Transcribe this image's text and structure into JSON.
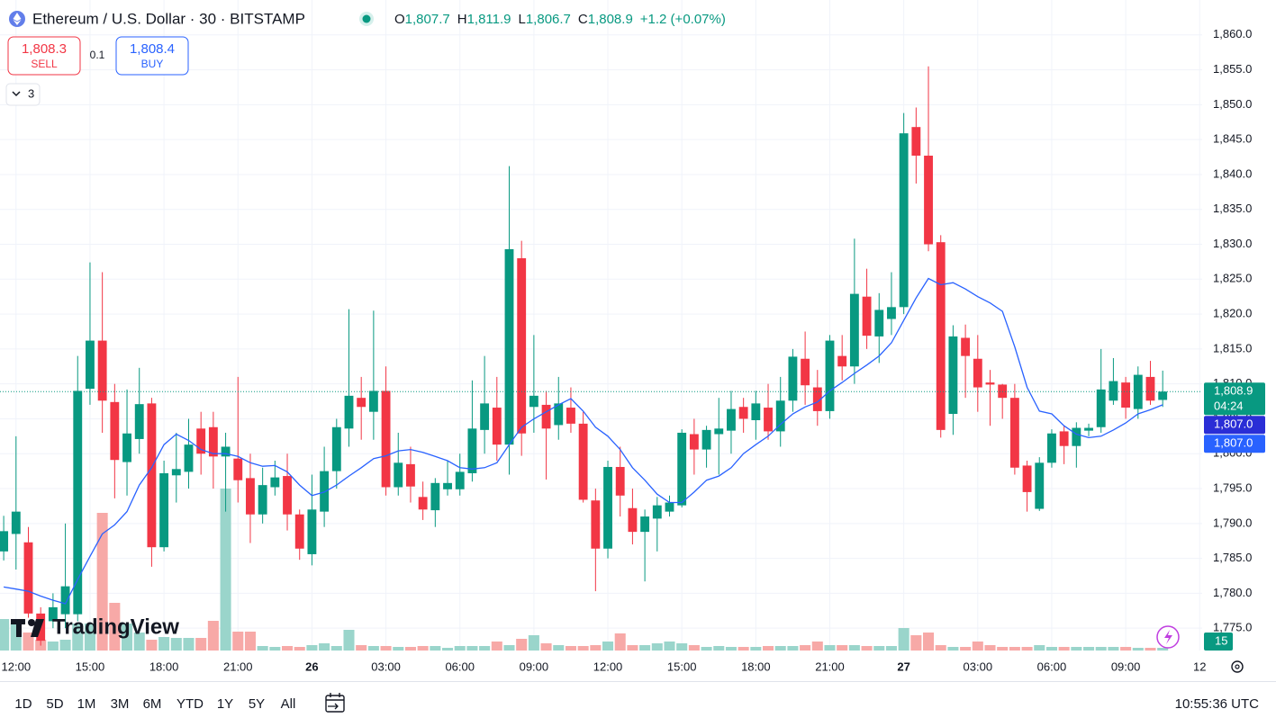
{
  "chart_data": {
    "type": "candlestick",
    "title": "Ethereum / U.S. Dollar · 30 · BITSTAMP",
    "ohlc_legend": [
      {
        "key": "O",
        "text": "1,807.7"
      },
      {
        "key": "H",
        "text": "1,811.9"
      },
      {
        "key": "L",
        "text": "1,806.7"
      },
      {
        "key": "C",
        "text": "1,808.9"
      }
    ],
    "change": "+1.2 (+0.07%)",
    "sell": {
      "price": "1,808.3",
      "label": "SELL"
    },
    "spread": "0.1",
    "buy": {
      "price": "1,808.4",
      "label": "BUY"
    },
    "indicator_count": "3",
    "logo": "TradingView",
    "up_color": "#089981",
    "down_color": "#f23645",
    "volume_up_color": "#9ad5cb",
    "volume_down_color": "#f7a9a7",
    "ma_color": "#2962ff",
    "grid": true,
    "ylim": [
      1771.8,
      1865
    ],
    "yticks": [
      {
        "value": 1775,
        "label": "1,775.0"
      },
      {
        "value": 1780,
        "label": "1,780.0"
      },
      {
        "value": 1785,
        "label": "1,785.0"
      },
      {
        "value": 1790,
        "label": "1,790.0"
      },
      {
        "value": 1795,
        "label": "1,795.0"
      },
      {
        "value": 1800,
        "label": "1,800.0"
      },
      {
        "value": 1805,
        "label": "1,805.0"
      },
      {
        "value": 1810,
        "label": "1,810.0"
      },
      {
        "value": 1815,
        "label": "1,815.0"
      },
      {
        "value": 1820,
        "label": "1,820.0"
      },
      {
        "value": 1825,
        "label": "1,825.0"
      },
      {
        "value": 1830,
        "label": "1,830.0"
      },
      {
        "value": 1835,
        "label": "1,835.0"
      },
      {
        "value": 1840,
        "label": "1,840.0"
      },
      {
        "value": 1845,
        "label": "1,845.0"
      },
      {
        "value": 1850,
        "label": "1,850.0"
      },
      {
        "value": 1855,
        "label": "1,855.0"
      },
      {
        "value": 1860,
        "label": "1,860.0"
      }
    ],
    "xlim": [
      -0.3,
      97.2
    ],
    "xticks": [
      {
        "value": 1,
        "label": "12:00"
      },
      {
        "value": 7,
        "label": "15:00"
      },
      {
        "value": 13,
        "label": "18:00"
      },
      {
        "value": 19,
        "label": "21:00"
      },
      {
        "value": 25,
        "label": "26"
      },
      {
        "value": 31,
        "label": "03:00"
      },
      {
        "value": 37,
        "label": "06:00"
      },
      {
        "value": 43,
        "label": "09:00"
      },
      {
        "value": 49,
        "label": "12:00"
      },
      {
        "value": 55,
        "label": "15:00"
      },
      {
        "value": 61,
        "label": "18:00"
      },
      {
        "value": 67,
        "label": "21:00"
      },
      {
        "value": 73,
        "label": "27"
      },
      {
        "value": 79,
        "label": "03:00"
      },
      {
        "value": 85,
        "label": "06:00"
      },
      {
        "value": 91,
        "label": "09:00"
      },
      {
        "value": 97,
        "label": "12"
      }
    ],
    "open": [
      1786.0,
      1788.5,
      1787.3,
      1777.1,
      1776,
      1777,
      1777,
      1809.3,
      1816.2,
      1807.4,
      1798.8,
      1802.1,
      1807.2,
      1786.6,
      1796.9,
      1797.4,
      1803.6,
      1803.8,
      1799.6,
      1799.3,
      1796.5,
      1791.3,
      1795.2,
      1796.8,
      1791.3,
      1785.6,
      1791.7,
      1797.5,
      1803.6,
      1808,
      1806,
      1809,
      1795.2,
      1798.5,
      1793.8,
      1791.9,
      1794.9,
      1794.9,
      1797.2,
      1803.4,
      1806.6,
      1801.3,
      1828,
      1806.7,
      1807,
      1804.1,
      1806.6,
      1804.3,
      1793.3,
      1786.4,
      1798.1,
      1792.2,
      1788.8,
      1790.7,
      1791.7,
      1792.6,
      1802.8,
      1800.6,
      1802.8,
      1803.3,
      1806.7,
      1804.8,
      1806.6,
      1803.2,
      1807.6,
      1813.6,
      1809.5,
      1806.1,
      1814,
      1812.5,
      1822.5,
      1816.8,
      1819.3,
      1821,
      1846.8,
      1842.7,
      1830.3,
      1805.7,
      1816.6,
      1813.6,
      1810.2,
      1809.9,
      1808,
      1798.3,
      1792.1,
      1798.7,
      1803.2,
      1801.1,
      1803.3,
      1803.8,
      1807.6,
      1810.2,
      1806.4,
      1811,
      1807.7
    ],
    "high": [
      1791.1,
      1802.5,
      1789.5,
      1778,
      1780,
      1790,
      1814,
      1827.4,
      1826,
      1810,
      1809.2,
      1812.3,
      1808,
      1799,
      1803,
      1805,
      1806,
      1806,
      1803,
      1811,
      1800,
      1798,
      1799,
      1800,
      1792,
      1797,
      1801,
      1805,
      1820.7,
      1811,
      1820.5,
      1812.5,
      1803,
      1801,
      1796,
      1796.5,
      1799,
      1800,
      1810.5,
      1814,
      1811,
      1841.2,
      1830.5,
      1817,
      1809,
      1811,
      1809.5,
      1806,
      1795,
      1799,
      1801,
      1795,
      1792,
      1793.8,
      1794,
      1803.5,
      1805,
      1804,
      1808,
      1809,
      1808,
      1809,
      1810,
      1811,
      1815,
      1817.5,
      1812,
      1817,
      1817,
      1830.8,
      1826.5,
      1823,
      1826,
      1848.8,
      1849.6,
      1855.5,
      1831.3,
      1818.4,
      1818.5,
      1817,
      1812,
      1810,
      1810,
      1799,
      1799.5,
      1803.5,
      1804,
      1804.5,
      1804.3,
      1815,
      1813.7,
      1811,
      1812.5,
      1813.3,
      1811.9
    ],
    "low": [
      1784.7,
      1783.4,
      1776.5,
      1772.5,
      1775,
      1775,
      1776,
      1807,
      1803,
      1793.6,
      1794,
      1800,
      1783.8,
      1786,
      1793,
      1795,
      1797,
      1795,
      1791.7,
      1793,
      1787.2,
      1790,
      1794,
      1789,
      1784.8,
      1784,
      1789.5,
      1795,
      1801,
      1802,
      1802,
      1794,
      1794,
      1793,
      1790.5,
      1789.5,
      1794,
      1794,
      1796,
      1800,
      1799,
      1797,
      1799.7,
      1803,
      1796.3,
      1802,
      1803,
      1793,
      1780.3,
      1785,
      1791,
      1787,
      1781.7,
      1786,
      1791,
      1792.3,
      1797,
      1798,
      1797,
      1800,
      1803,
      1802,
      1802,
      1801,
      1806,
      1807,
      1804,
      1805,
      1810.5,
      1810,
      1815,
      1813,
      1817,
      1820,
      1838.7,
      1829,
      1802.3,
      1802.7,
      1808,
      1806,
      1804,
      1805,
      1797,
      1791.7,
      1791.8,
      1798,
      1798.5,
      1798,
      1802.5,
      1803,
      1807,
      1805,
      1805,
      1807,
      1806.7
    ],
    "close": [
      1788.9,
      1791.7,
      1777.1,
      1773.2,
      1778,
      1781,
      1809,
      1816.2,
      1807.6,
      1799.1,
      1802.9,
      1807.1,
      1786.6,
      1797.2,
      1797.8,
      1801.3,
      1800.0,
      1799.6,
      1801.0,
      1796.2,
      1791.3,
      1795.5,
      1796.6,
      1791.3,
      1786.4,
      1792.0,
      1797.5,
      1803.8,
      1808.3,
      1806.7,
      1809,
      1795.2,
      1798.7,
      1795.3,
      1792,
      1795.8,
      1795.8,
      1797.4,
      1803.6,
      1807.2,
      1801.3,
      1829.3,
      1802.9,
      1808.3,
      1803.6,
      1807.2,
      1804.3,
      1793.4,
      1786.4,
      1798.1,
      1794,
      1788.8,
      1791,
      1792.6,
      1793,
      1803,
      1800.6,
      1803.4,
      1803.6,
      1806.4,
      1805,
      1807.2,
      1803.2,
      1807.6,
      1813.9,
      1809.8,
      1806.1,
      1816.2,
      1812.5,
      1822.9,
      1816.9,
      1820.6,
      1821,
      1845.9,
      1842.7,
      1830,
      1803.4,
      1816.8,
      1814,
      1809.5,
      1809.9,
      1808,
      1798,
      1794.5,
      1798.7,
      1802.9,
      1801.1,
      1803.7,
      1803.7,
      1809.2,
      1810.4,
      1806.6,
      1811.3,
      1807.6,
      1808.9
    ],
    "ma": [
      1780.9,
      1780.6,
      1780.3,
      1779.6,
      1779,
      1778.5,
      1782,
      1785.3,
      1788.5,
      1789.8,
      1791.7,
      1795.5,
      1798,
      1801.3,
      1802.8,
      1801.9,
      1800.6,
      1800,
      1800,
      1799.6,
      1798.7,
      1798.2,
      1798.3,
      1797.4,
      1795.5,
      1794,
      1794.5,
      1795.5,
      1796.8,
      1798,
      1799.3,
      1799.7,
      1800.4,
      1800.6,
      1800.2,
      1799.6,
      1799,
      1798,
      1797.8,
      1798,
      1798.7,
      1801.3,
      1803.8,
      1805,
      1806,
      1807,
      1807.9,
      1806.1,
      1803.8,
      1802.5,
      1800.6,
      1798,
      1796.2,
      1794.2,
      1793,
      1793,
      1794.5,
      1796.2,
      1796.8,
      1798,
      1800,
      1801.3,
      1802.5,
      1804.2,
      1805.7,
      1806.7,
      1807.4,
      1809,
      1810.2,
      1811.5,
      1812.7,
      1814,
      1815.9,
      1819.1,
      1822.3,
      1825.1,
      1824.2,
      1824.5,
      1823.6,
      1822.5,
      1821.6,
      1820.4,
      1815.3,
      1809.5,
      1806.1,
      1805.7,
      1804,
      1802.8,
      1802.3,
      1802.5,
      1803.4,
      1804.4,
      1805.7,
      1806.3,
      1807
    ],
    "volume": [
      175,
      150,
      100,
      60,
      50,
      60,
      150,
      150,
      765,
      265,
      150,
      100,
      60,
      75,
      70,
      70,
      70,
      165,
      900,
      105,
      105,
      25,
      20,
      25,
      20,
      30,
      40,
      25,
      115,
      30,
      25,
      25,
      20,
      20,
      25,
      25,
      15,
      25,
      25,
      25,
      50,
      30,
      65,
      85,
      40,
      30,
      25,
      25,
      30,
      50,
      95,
      30,
      30,
      40,
      50,
      40,
      30,
      20,
      25,
      20,
      20,
      20,
      25,
      25,
      25,
      30,
      50,
      30,
      30,
      30,
      25,
      25,
      25,
      125,
      85,
      100,
      30,
      20,
      20,
      50,
      30,
      20,
      20,
      20,
      30,
      20,
      20,
      20,
      20,
      20,
      20,
      20,
      15,
      15,
      15
    ],
    "volume_ylim": [
      0,
      1000
    ],
    "price_badges": [
      {
        "value": 1808.9,
        "label": "1,808.9",
        "color": "#089981",
        "countdown": "04:24"
      },
      {
        "value": 1807.0,
        "label": "1,807.0",
        "color": "#2a2ed6"
      },
      {
        "value": 1807.0,
        "label": "1,807.0",
        "color": "#2962ff"
      }
    ],
    "ranges": [
      "1D",
      "5D",
      "1M",
      "3M",
      "6M",
      "YTD",
      "1Y",
      "5Y",
      "All"
    ],
    "clock": "10:55:36 UTC"
  }
}
